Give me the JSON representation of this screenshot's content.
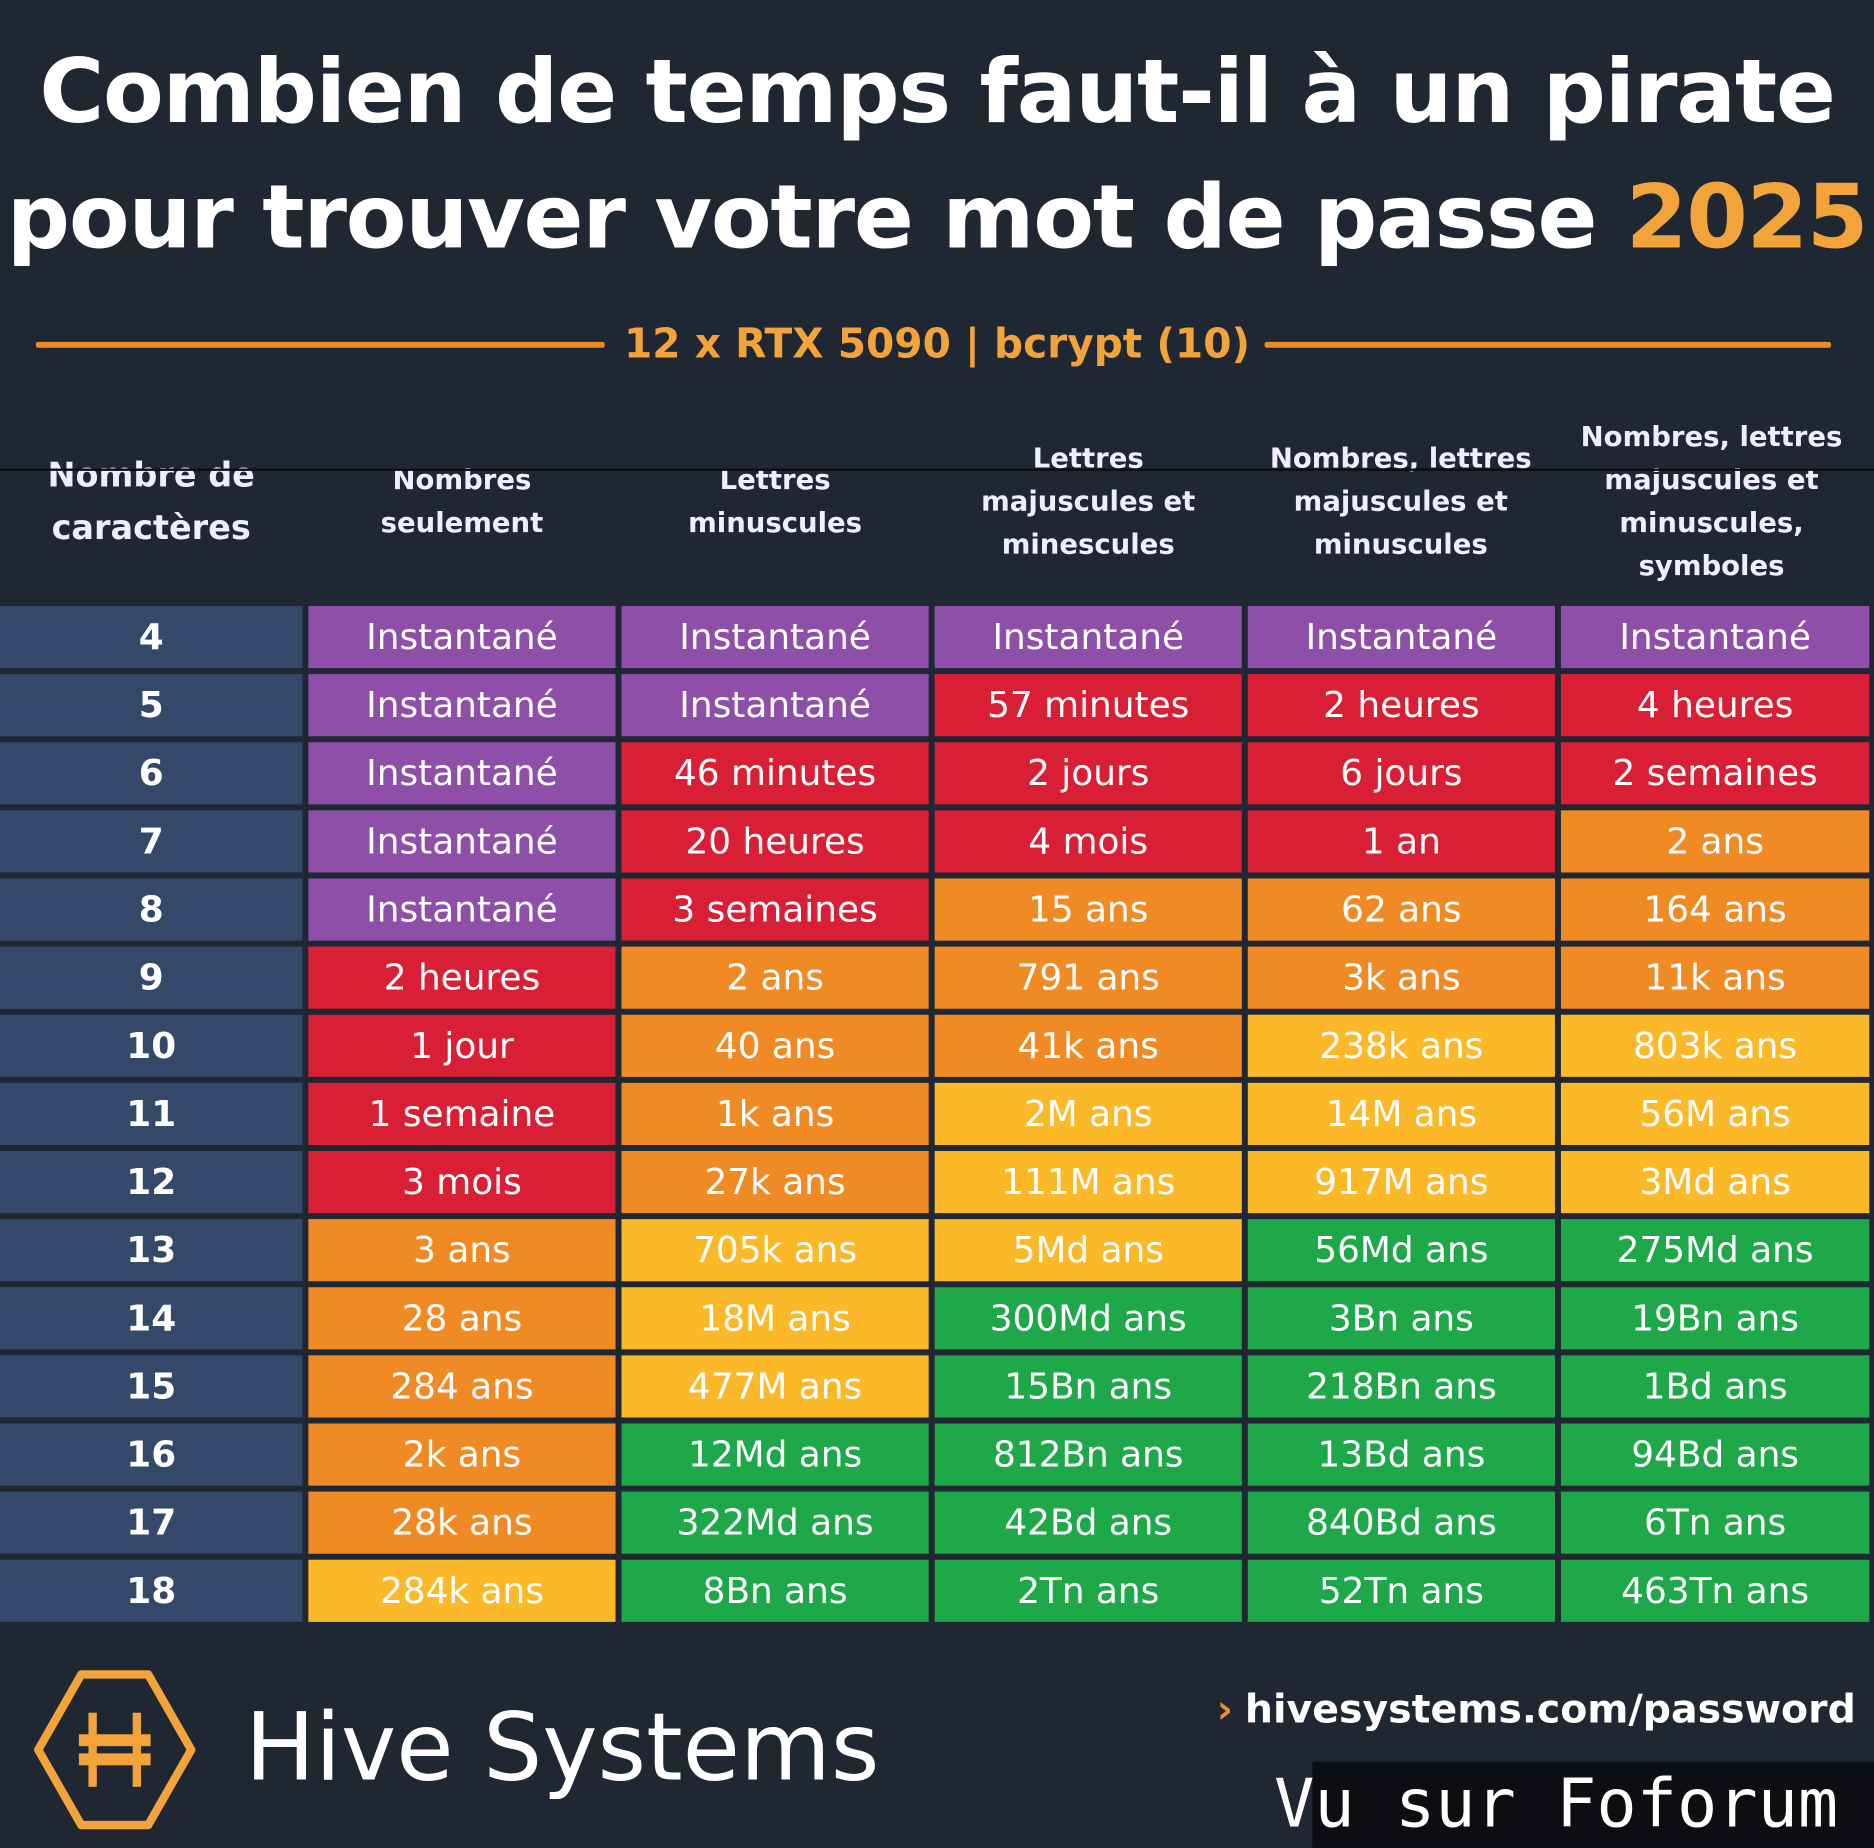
{
  "title": {
    "line1": "Combien de temps faut-il à un pirate",
    "line2": "pour trouver votre mot de passe",
    "year": "2025"
  },
  "subtitle": "12 x RTX 5090 | bcrypt (10)",
  "headers": [
    "Nombre de caractères",
    "Nombres seulement",
    "Lettres minuscules",
    "Lettres majuscules et minescules",
    "Nombres, lettres majuscules et minuscules",
    "Nombres, lettres majuscules et minuscules, symboles"
  ],
  "colors": {
    "p": "#8e4fa8",
    "r": "#d81f35",
    "o": "#f08a24",
    "y": "#fbb829",
    "g": "#1ea84a",
    "rowhead": "#34496a",
    "bg": "#1f2733"
  },
  "rows": [
    {
      "n": "4",
      "cells": [
        [
          "Instantané",
          "p"
        ],
        [
          "Instantané",
          "p"
        ],
        [
          "Instantané",
          "p"
        ],
        [
          "Instantané",
          "p"
        ],
        [
          "Instantané",
          "p"
        ]
      ]
    },
    {
      "n": "5",
      "cells": [
        [
          "Instantané",
          "p"
        ],
        [
          "Instantané",
          "p"
        ],
        [
          "57 minutes",
          "r"
        ],
        [
          "2 heures",
          "r"
        ],
        [
          "4 heures",
          "r"
        ]
      ]
    },
    {
      "n": "6",
      "cells": [
        [
          "Instantané",
          "p"
        ],
        [
          "46 minutes",
          "r"
        ],
        [
          "2 jours",
          "r"
        ],
        [
          "6 jours",
          "r"
        ],
        [
          "2 semaines",
          "r"
        ]
      ]
    },
    {
      "n": "7",
      "cells": [
        [
          "Instantané",
          "p"
        ],
        [
          "20 heures",
          "r"
        ],
        [
          "4 mois",
          "r"
        ],
        [
          "1 an",
          "r"
        ],
        [
          "2 ans",
          "o"
        ]
      ]
    },
    {
      "n": "8",
      "cells": [
        [
          "Instantané",
          "p"
        ],
        [
          "3 semaines",
          "r"
        ],
        [
          "15 ans",
          "o"
        ],
        [
          "62 ans",
          "o"
        ],
        [
          "164 ans",
          "o"
        ]
      ]
    },
    {
      "n": "9",
      "cells": [
        [
          "2 heures",
          "r"
        ],
        [
          "2 ans",
          "o"
        ],
        [
          "791 ans",
          "o"
        ],
        [
          "3k ans",
          "o"
        ],
        [
          "11k ans",
          "o"
        ]
      ]
    },
    {
      "n": "10",
      "cells": [
        [
          "1 jour",
          "r"
        ],
        [
          "40 ans",
          "o"
        ],
        [
          "41k ans",
          "o"
        ],
        [
          "238k ans",
          "y"
        ],
        [
          "803k ans",
          "y"
        ]
      ]
    },
    {
      "n": "11",
      "cells": [
        [
          "1 semaine",
          "r"
        ],
        [
          "1k ans",
          "o"
        ],
        [
          "2M ans",
          "y"
        ],
        [
          "14M ans",
          "y"
        ],
        [
          "56M ans",
          "y"
        ]
      ]
    },
    {
      "n": "12",
      "cells": [
        [
          "3 mois",
          "r"
        ],
        [
          "27k ans",
          "o"
        ],
        [
          "111M ans",
          "y"
        ],
        [
          "917M ans",
          "y"
        ],
        [
          "3Md ans",
          "y"
        ]
      ]
    },
    {
      "n": "13",
      "cells": [
        [
          "3 ans",
          "o"
        ],
        [
          "705k ans",
          "y"
        ],
        [
          "5Md ans",
          "y"
        ],
        [
          "56Md ans",
          "g"
        ],
        [
          "275Md ans",
          "g"
        ]
      ]
    },
    {
      "n": "14",
      "cells": [
        [
          "28 ans",
          "o"
        ],
        [
          "18M ans",
          "y"
        ],
        [
          "300Md ans",
          "g"
        ],
        [
          "3Bn ans",
          "g"
        ],
        [
          "19Bn ans",
          "g"
        ]
      ]
    },
    {
      "n": "15",
      "cells": [
        [
          "284 ans",
          "o"
        ],
        [
          "477M ans",
          "y"
        ],
        [
          "15Bn ans",
          "g"
        ],
        [
          "218Bn ans",
          "g"
        ],
        [
          "1Bd ans",
          "g"
        ]
      ]
    },
    {
      "n": "16",
      "cells": [
        [
          "2k ans",
          "o"
        ],
        [
          "12Md ans",
          "g"
        ],
        [
          "812Bn ans",
          "g"
        ],
        [
          "13Bd ans",
          "g"
        ],
        [
          "94Bd ans",
          "g"
        ]
      ]
    },
    {
      "n": "17",
      "cells": [
        [
          "28k ans",
          "o"
        ],
        [
          "322Md ans",
          "g"
        ],
        [
          "42Bd ans",
          "g"
        ],
        [
          "840Bd ans",
          "g"
        ],
        [
          "6Tn ans",
          "g"
        ]
      ]
    },
    {
      "n": "18",
      "cells": [
        [
          "284k ans",
          "y"
        ],
        [
          "8Bn ans",
          "g"
        ],
        [
          "2Tn ans",
          "g"
        ],
        [
          "52Tn ans",
          "g"
        ],
        [
          "463Tn ans",
          "g"
        ]
      ]
    }
  ],
  "footer": {
    "brand": "Hive Systems",
    "url": "hivesystems.com/password",
    "watermark": "Vu sur Foforum"
  }
}
